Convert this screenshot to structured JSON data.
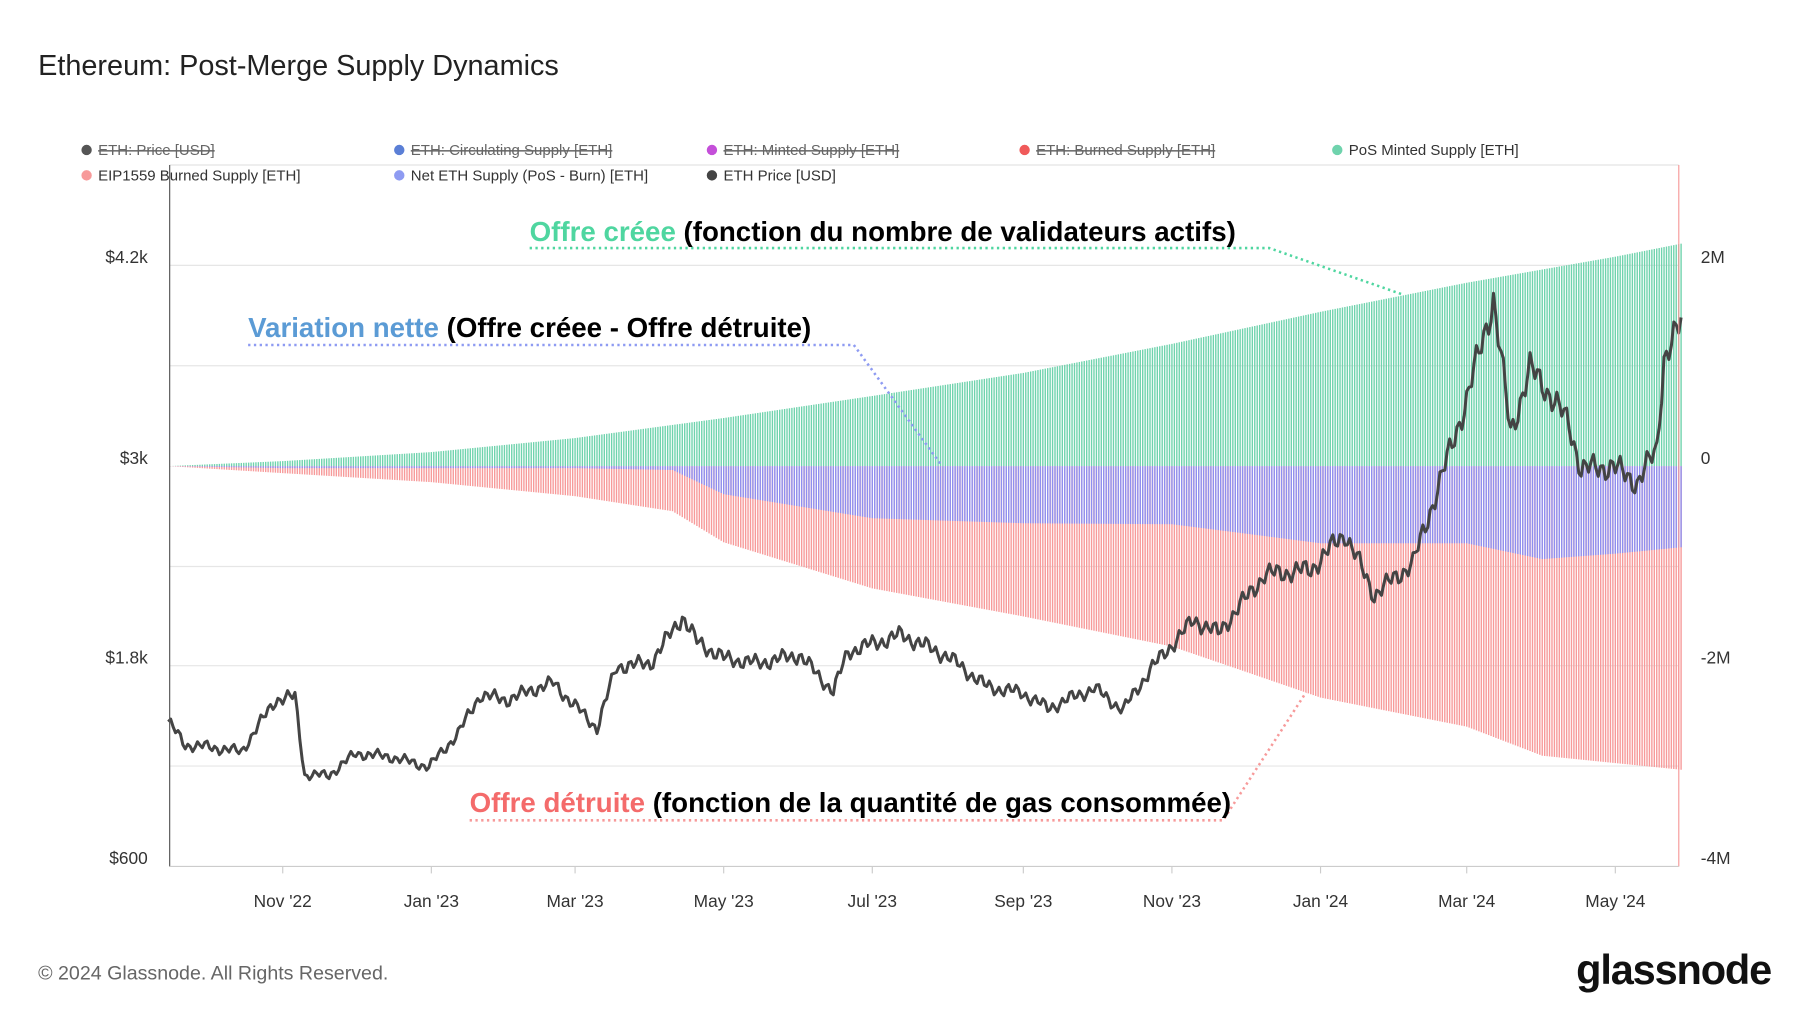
{
  "title": "Ethereum: Post-Merge Supply Dynamics",
  "footer": {
    "copyright": "© 2024 Glassnode. All Rights Reserved.",
    "logo": "glassnode"
  },
  "legend": [
    {
      "label": "ETH: Price [USD]",
      "color": "#555555",
      "hidden": true
    },
    {
      "label": "ETH: Circulating Supply [ETH]",
      "color": "#5b7fd6",
      "hidden": true
    },
    {
      "label": "ETH: Minted Supply [ETH]",
      "color": "#c44fd9",
      "hidden": true
    },
    {
      "label": "ETH: Burned Supply [ETH]",
      "color": "#f05a5a",
      "hidden": true
    },
    {
      "label": "PoS Minted Supply [ETH]",
      "color": "#6fd3ad",
      "hidden": false
    },
    {
      "label": "EIP1559 Burned Supply [ETH]",
      "color": "#f79a9a",
      "hidden": false
    },
    {
      "label": "Net ETH Supply (PoS - Burn) [ETH]",
      "color": "#8e9bf2",
      "hidden": false
    },
    {
      "label": "ETH Price [USD]",
      "color": "#444444",
      "hidden": false
    }
  ],
  "annotations": {
    "minted": {
      "highlight": "Offre créee",
      "rest": " (fonction du nombre de validateurs actifs)",
      "color": "#4fd6a0"
    },
    "net": {
      "highlight": "Variation nette",
      "rest": " (Offre créee - Offre détruite)",
      "color": "#5b9bd5"
    },
    "burned": {
      "highlight": "Offre détruite",
      "rest": " (fonction de la quantité de gas consommée)",
      "color": "#f46b6b"
    }
  },
  "chart_data": {
    "type": "bar",
    "title": "Ethereum: Post-Merge Supply Dynamics",
    "x_ticks": [
      "Nov '22",
      "Jan '23",
      "Mar '23",
      "May '23",
      "Jul '23",
      "Sep '23",
      "Nov '23",
      "Jan '24",
      "Mar '24",
      "May '24"
    ],
    "x_range": [
      "2022-09-15",
      "2024-05-28"
    ],
    "y_left": {
      "ticks": [
        "$600",
        "$1.8k",
        "$3k",
        "$4.2k"
      ],
      "range": [
        600,
        4200
      ],
      "unit": "USD"
    },
    "y_right": {
      "ticks": [
        "-4M",
        "-2M",
        "0",
        "2M"
      ],
      "range": [
        -4000000,
        2000000
      ],
      "unit": "ETH"
    },
    "grid": true,
    "legend_position": "top",
    "series": [
      {
        "name": "PoS Minted Supply [ETH]",
        "type": "bar",
        "axis": "right",
        "unit": "M ETH",
        "points": [
          [
            "2022-09-15",
            0
          ],
          [
            "2022-11-01",
            0.05
          ],
          [
            "2023-01-01",
            0.14
          ],
          [
            "2023-03-01",
            0.28
          ],
          [
            "2023-05-01",
            0.48
          ],
          [
            "2023-07-01",
            0.7
          ],
          [
            "2023-09-01",
            0.93
          ],
          [
            "2023-11-01",
            1.22
          ],
          [
            "2024-01-01",
            1.54
          ],
          [
            "2024-03-01",
            1.83
          ],
          [
            "2024-05-01",
            2.09
          ],
          [
            "2024-05-28",
            2.22
          ]
        ]
      },
      {
        "name": "EIP1559 Burned Supply [ETH]",
        "type": "bar",
        "axis": "right",
        "unit": "M ETH",
        "points": [
          [
            "2022-09-15",
            0
          ],
          [
            "2022-11-01",
            -0.07
          ],
          [
            "2023-01-01",
            -0.16
          ],
          [
            "2023-03-01",
            -0.3
          ],
          [
            "2023-04-10",
            -0.45
          ],
          [
            "2023-05-01",
            -0.76
          ],
          [
            "2023-07-01",
            -1.22
          ],
          [
            "2023-09-01",
            -1.5
          ],
          [
            "2023-11-01",
            -1.8
          ],
          [
            "2023-12-01",
            -2.05
          ],
          [
            "2024-01-01",
            -2.31
          ],
          [
            "2024-03-01",
            -2.6
          ],
          [
            "2024-04-01",
            -2.89
          ],
          [
            "2024-05-28",
            -3.03
          ]
        ]
      },
      {
        "name": "Net ETH Supply (PoS - Burn) [ETH]",
        "type": "bar",
        "axis": "right",
        "unit": "M ETH",
        "derived": "minted + burned"
      },
      {
        "name": "ETH Price [USD]",
        "type": "line",
        "axis": "left",
        "points": [
          [
            "2022-09-15",
            1470
          ],
          [
            "2022-09-22",
            1330
          ],
          [
            "2022-10-01",
            1320
          ],
          [
            "2022-10-15",
            1290
          ],
          [
            "2022-10-29",
            1600
          ],
          [
            "2022-11-06",
            1620
          ],
          [
            "2022-11-10",
            1150
          ],
          [
            "2022-11-20",
            1150
          ],
          [
            "2022-12-01",
            1280
          ],
          [
            "2022-12-15",
            1260
          ],
          [
            "2022-12-31",
            1200
          ],
          [
            "2023-01-12",
            1400
          ],
          [
            "2023-01-21",
            1630
          ],
          [
            "2023-02-01",
            1600
          ],
          [
            "2023-02-15",
            1680
          ],
          [
            "2023-02-20",
            1700
          ],
          [
            "2023-03-10",
            1430
          ],
          [
            "2023-03-18",
            1800
          ],
          [
            "2023-04-01",
            1820
          ],
          [
            "2023-04-14",
            2100
          ],
          [
            "2023-04-20",
            1950
          ],
          [
            "2023-05-01",
            1850
          ],
          [
            "2023-05-15",
            1820
          ],
          [
            "2023-06-01",
            1870
          ],
          [
            "2023-06-15",
            1650
          ],
          [
            "2023-06-21",
            1890
          ],
          [
            "2023-07-13",
            1990
          ],
          [
            "2023-08-01",
            1860
          ],
          [
            "2023-08-17",
            1680
          ],
          [
            "2023-09-01",
            1640
          ],
          [
            "2023-09-11",
            1550
          ],
          [
            "2023-09-30",
            1670
          ],
          [
            "2023-10-12",
            1540
          ],
          [
            "2023-10-23",
            1780
          ],
          [
            "2023-11-10",
            2080
          ],
          [
            "2023-11-20",
            2000
          ],
          [
            "2023-12-09",
            2350
          ],
          [
            "2023-12-28",
            2380
          ],
          [
            "2024-01-11",
            2600
          ],
          [
            "2024-01-23",
            2230
          ],
          [
            "2024-02-08",
            2420
          ],
          [
            "2024-02-20",
            2950
          ],
          [
            "2024-03-01",
            3400
          ],
          [
            "2024-03-12",
            4000
          ],
          [
            "2024-03-19",
            3200
          ],
          [
            "2024-03-27",
            3580
          ],
          [
            "2024-04-01",
            3500
          ],
          [
            "2024-04-12",
            3250
          ],
          [
            "2024-04-17",
            2980
          ],
          [
            "2024-04-30",
            3000
          ],
          [
            "2024-05-10",
            2900
          ],
          [
            "2024-05-18",
            3100
          ],
          [
            "2024-05-21",
            3650
          ],
          [
            "2024-05-28",
            3850
          ]
        ]
      }
    ]
  }
}
